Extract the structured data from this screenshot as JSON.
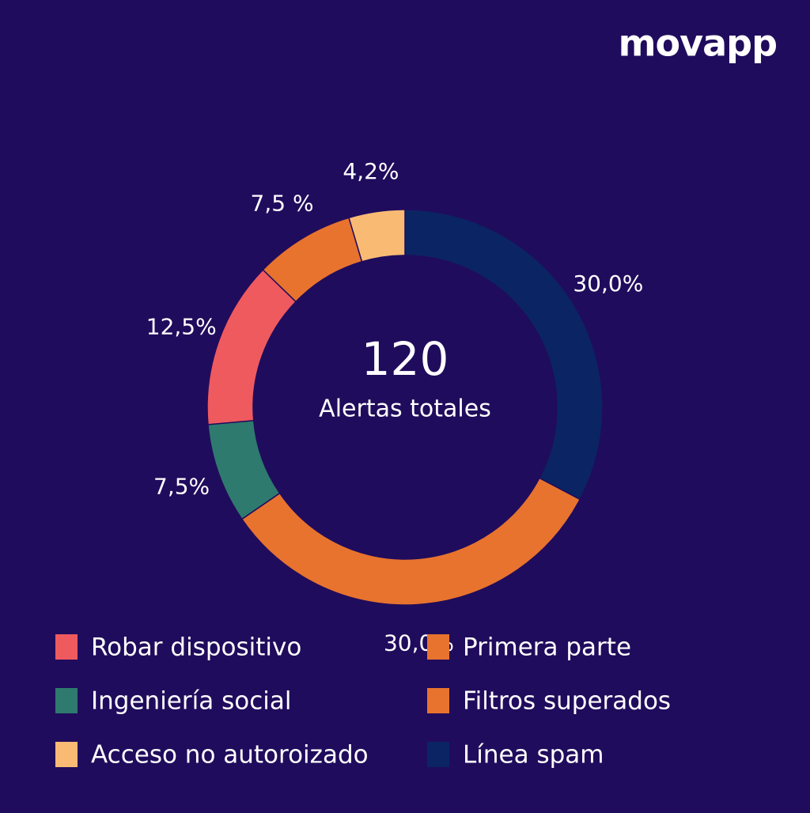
{
  "brand": "movapp",
  "chart_data": {
    "type": "pie",
    "center_value": "120",
    "center_label": "Alertas totales",
    "categories": [
      "Línea spam",
      "Filtros superados",
      "Ingeniería social",
      "Robar dispositivo",
      "Primera parte",
      "Acceso no autoroizado"
    ],
    "values": [
      30,
      30,
      7.5,
      12.5,
      7.5,
      4.2
    ],
    "value_labels": [
      "30,0%",
      "30,0%",
      "7,5%",
      "12,5%",
      "7,5 %",
      "4,2%"
    ],
    "colors": [
      "#0b2463",
      "#e8732e",
      "#2e7a6e",
      "#ef5a5f",
      "#e8732e",
      "#f9bb74"
    ]
  }
}
